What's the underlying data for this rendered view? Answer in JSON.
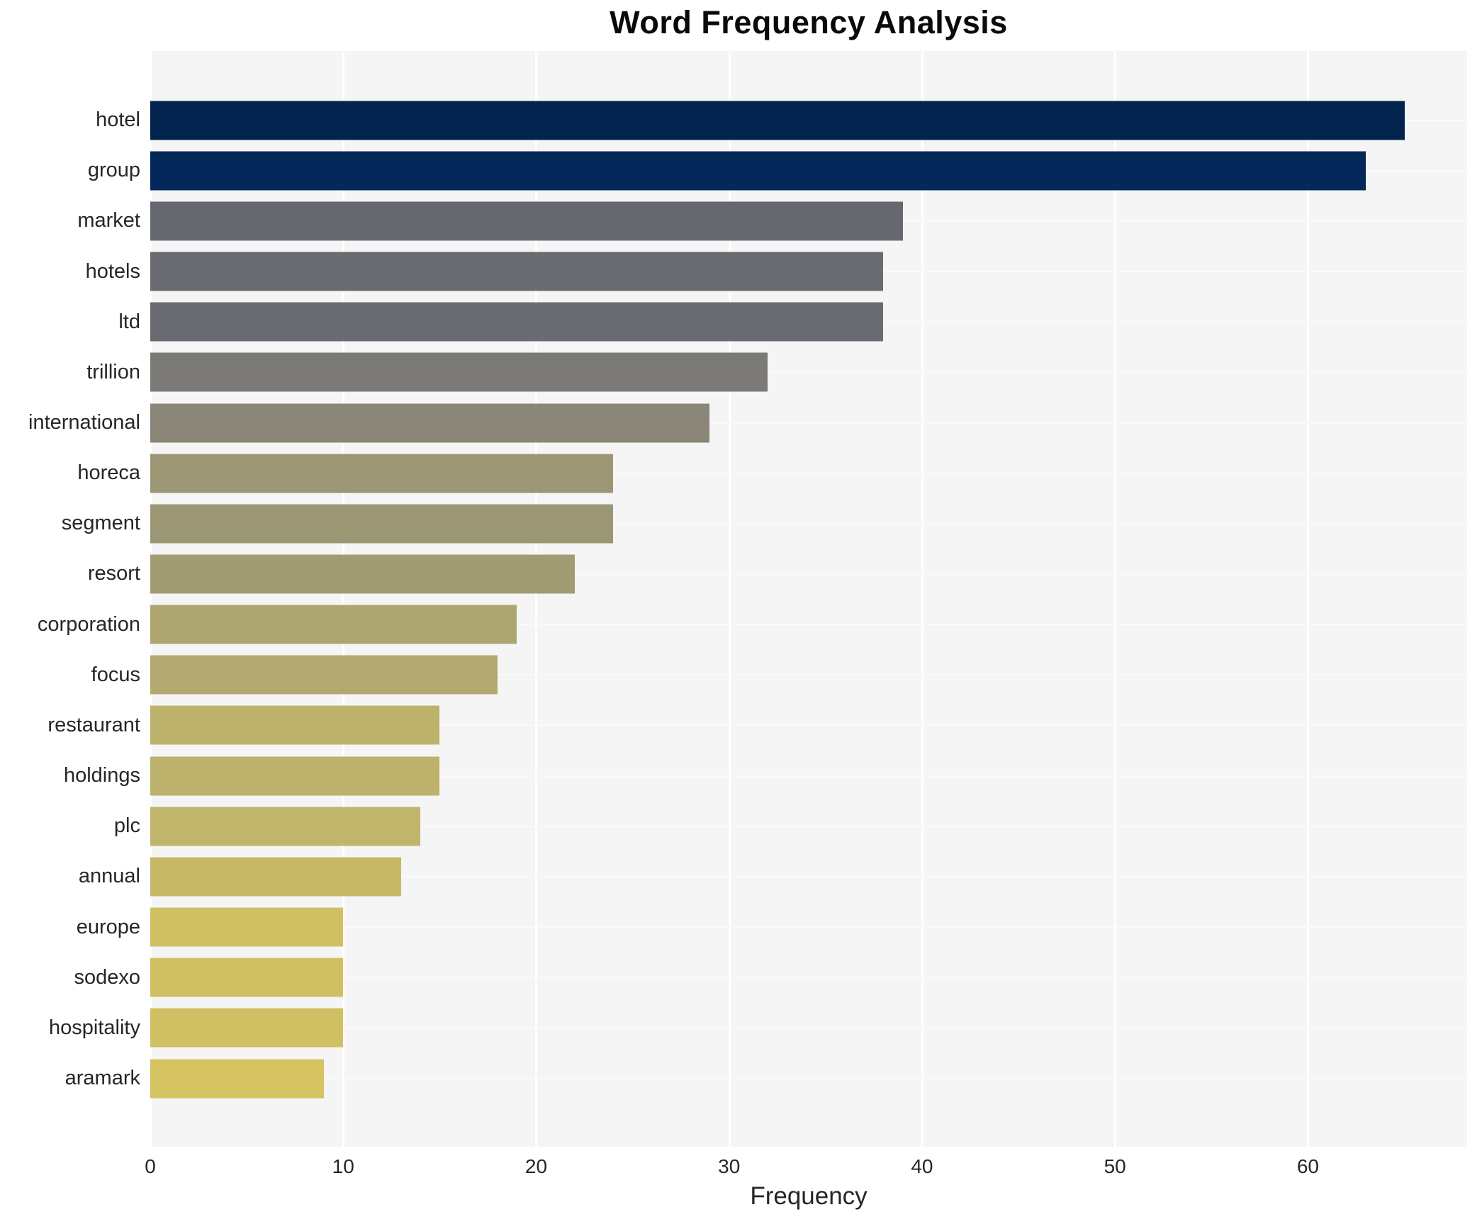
{
  "chart_data": {
    "type": "bar",
    "orientation": "horizontal",
    "title": "Word Frequency Analysis",
    "xlabel": "Frequency",
    "ylabel": "",
    "categories": [
      "hotel",
      "group",
      "market",
      "hotels",
      "ltd",
      "trillion",
      "international",
      "horeca",
      "segment",
      "resort",
      "corporation",
      "focus",
      "restaurant",
      "holdings",
      "plc",
      "annual",
      "europe",
      "sodexo",
      "hospitality",
      "aramark"
    ],
    "values": [
      65,
      63,
      39,
      38,
      38,
      32,
      29,
      24,
      24,
      22,
      19,
      18,
      15,
      15,
      14,
      13,
      10,
      10,
      10,
      9
    ],
    "bar_colors": [
      "#02234d",
      "#04285a",
      "#65686f",
      "#696b71",
      "#696b71",
      "#7b7a76",
      "#8a8778",
      "#9b9674",
      "#9b9674",
      "#a29c73",
      "#ada671",
      "#b1a96f",
      "#bcb26b",
      "#bcb26b",
      "#c0b56a",
      "#c5b968",
      "#d0c063",
      "#d0c063",
      "#d0c063",
      "#d4c360"
    ],
    "xticks": [
      0,
      10,
      20,
      30,
      40,
      50,
      60
    ],
    "xlim": [
      0,
      68.25
    ],
    "grid": true,
    "legend": "none",
    "colors": {
      "plot_background": "#f5f5f6",
      "figure_background": "#ffffff",
      "gridline": "#ffffff",
      "tick_text": "#262626",
      "title_text": "#0a0a0a"
    }
  }
}
